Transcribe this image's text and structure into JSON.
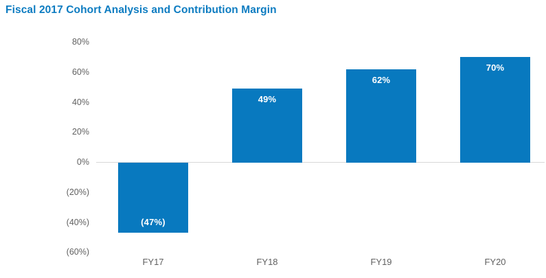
{
  "page": {
    "title": "Fiscal 2017 Cohort Analysis and Contribution Margin"
  },
  "colors": {
    "title": "#0d7cc1",
    "bar": "#0879bf",
    "bar_label": "#ffffff",
    "axis_label": "#616161",
    "baseline": "#d8d8d8",
    "background": "#ffffff"
  },
  "chart_data": {
    "type": "bar",
    "title": "Fiscal 2017 Cohort Analysis and Contribution Margin",
    "categories": [
      "FY17",
      "FY18",
      "FY19",
      "FY20"
    ],
    "values": [
      -47,
      49,
      62,
      70
    ],
    "bar_labels": [
      "(47%)",
      "49%",
      "62%",
      "70%"
    ],
    "unit": "percent",
    "negative_format": "parentheses",
    "xlabel": "",
    "ylabel": "",
    "legend": "none",
    "grid": "zero-baseline-only",
    "y_axis": {
      "range": [
        -60,
        80
      ],
      "tick_step": 20,
      "ticks": [
        {
          "value": 80,
          "label": "80%"
        },
        {
          "value": 60,
          "label": "60%"
        },
        {
          "value": 40,
          "label": "40%"
        },
        {
          "value": 20,
          "label": "20%"
        },
        {
          "value": 0,
          "label": "0%"
        },
        {
          "value": -20,
          "label": "(20%)"
        },
        {
          "value": -40,
          "label": "(40%)"
        },
        {
          "value": -60,
          "label": "(60%)"
        }
      ]
    }
  }
}
